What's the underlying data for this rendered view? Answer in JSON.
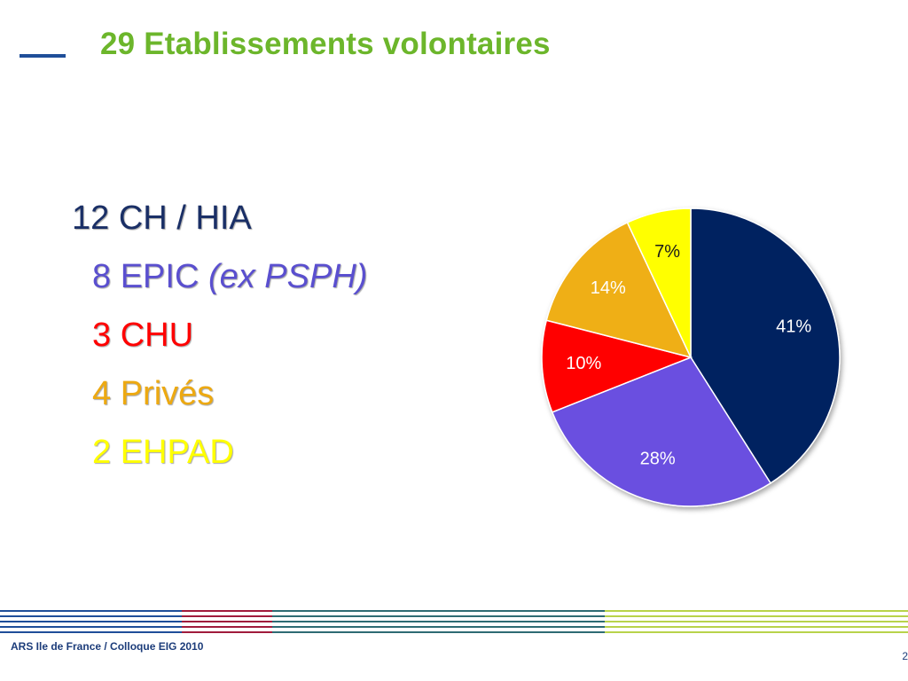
{
  "slide": {
    "title": "29 Etablissements volontaires",
    "footer": "ARS Ile de France / Colloque EIG 2010",
    "page_number": "2"
  },
  "bullets": [
    {
      "text": "12 CH / HIA",
      "suffix": "",
      "color": "#1a2f66"
    },
    {
      "text": "8 EPIC ",
      "suffix": "(ex PSPH)",
      "color": "#5a4fcf"
    },
    {
      "text": "3 CHU",
      "suffix": "",
      "color": "#ff0000"
    },
    {
      "text": "4 Privés",
      "suffix": "",
      "color": "#eda911"
    },
    {
      "text": "2 EHPAD",
      "suffix": "",
      "color": "#ffff00"
    }
  ],
  "chart_data": {
    "type": "pie",
    "start": "12 o'clock, clockwise",
    "slices": [
      {
        "label": "41%",
        "value": 41,
        "color": "#002060"
      },
      {
        "label": "28%",
        "value": 28,
        "color": "#6a50e0"
      },
      {
        "label": "10%",
        "value": 10,
        "color": "#ff0000"
      },
      {
        "label": "14%",
        "value": 14,
        "color": "#efaf13"
      },
      {
        "label": "7%",
        "value": 7,
        "color": "#ffff00"
      }
    ]
  },
  "colors": {
    "title": "#6cb62b",
    "accent_blue": "#1f4e99",
    "accent_red": "#a01b3c",
    "accent_green": "#9cc43a"
  }
}
